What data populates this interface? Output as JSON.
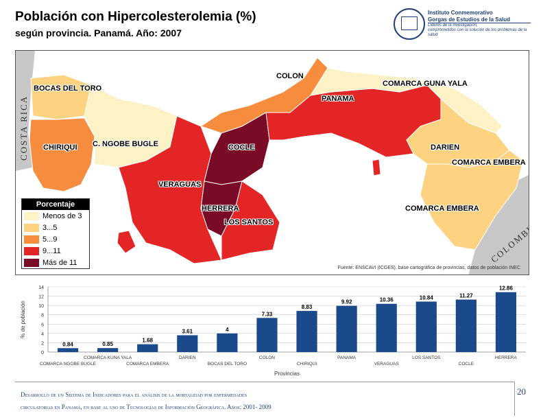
{
  "header": {
    "title": "Población con Hipercolesterolemia (%)",
    "subtitle": "según provincia. Panamá. Año: 2007"
  },
  "logo": {
    "line1": "Instituto Conmemorativo",
    "line2": "Gorgas de Estudios de la Salud",
    "tagline1": "Líderes de la investigación,",
    "tagline2": "comprometidos con la solución de los problemas de la salud"
  },
  "map": {
    "countries": {
      "left": "COSTA RICA",
      "right": "COLOMBIA"
    },
    "labels": {
      "bocas": "BOCAS DEL TORO",
      "colon": "COLON",
      "guna": "COMARCA GUNA YALA",
      "panama": "PANAMA",
      "chiriqui": "CHIRIQUI",
      "ngobe": "C. NGOBE BUGLE",
      "cocle": "COCLE",
      "darien": "DARIEN",
      "embera1": "COMARCA EMBERA",
      "veraguas": "VERAGUAS",
      "herrera": "HERRERA",
      "lossantos": "LOS SANTOS",
      "embera2": "COMARCA EMBERA"
    },
    "legend": {
      "title": "Porcentaje",
      "items": [
        {
          "label": "Menos de 3",
          "color": "#fdf2c6"
        },
        {
          "label": "3...5",
          "color": "#fdd382"
        },
        {
          "label": "5...9",
          "color": "#f68c3e"
        },
        {
          "label": "9...11",
          "color": "#e42525"
        },
        {
          "label": "Más de 11",
          "color": "#7a0b26"
        }
      ]
    },
    "source": "Fuente: ENSCAVI (ICGES), base cartográfica de provincias, datos de población INEC",
    "colors": {
      "lt3": "#fdf2c6",
      "c3_5": "#fdd382",
      "c5_9": "#f68c3e",
      "c9_11": "#e42525",
      "gt11": "#7a0b26",
      "neighbor": "#c8c8c8"
    }
  },
  "chart_data": {
    "type": "bar",
    "categories": [
      "COMARCA NGOBE BUGLE",
      "COMARCA KUNA YALA",
      "COMARCA EMBERA",
      "DARIEN",
      "BOCAS DEL TORO",
      "COLON",
      "CHIRIQUI",
      "PANAMA",
      "VERAGUAS",
      "LOS SANTOS",
      "COCLE",
      "HERRERA"
    ],
    "values": [
      0.84,
      0.85,
      1.68,
      3.61,
      4,
      7.33,
      8.83,
      9.92,
      10.36,
      10.84,
      11.27,
      12.86
    ],
    "value_labels": [
      "0.84",
      "0.85",
      "1.68",
      "3.61",
      "4",
      "7.33",
      "8.83",
      "9.92",
      "10.36",
      "10.84",
      "11.27",
      "12.86"
    ],
    "xlabel": "Provincias",
    "ylabel": "% de población",
    "ylim": [
      0,
      14
    ],
    "yticks": [
      "0",
      "2",
      "4",
      "6",
      "8",
      "10",
      "12",
      "14"
    ],
    "bar_color": "#1b4a8c",
    "grid": true
  },
  "footer": {
    "line1": "Desarrollo de un Sistema de Indicadores para el análisis de la mortalidad por enfermedades",
    "line2": "circulatorias en Panamá, en base al uso de Tecnologías de Información Geográfica. Años: 2001- 2009",
    "page": "20"
  }
}
